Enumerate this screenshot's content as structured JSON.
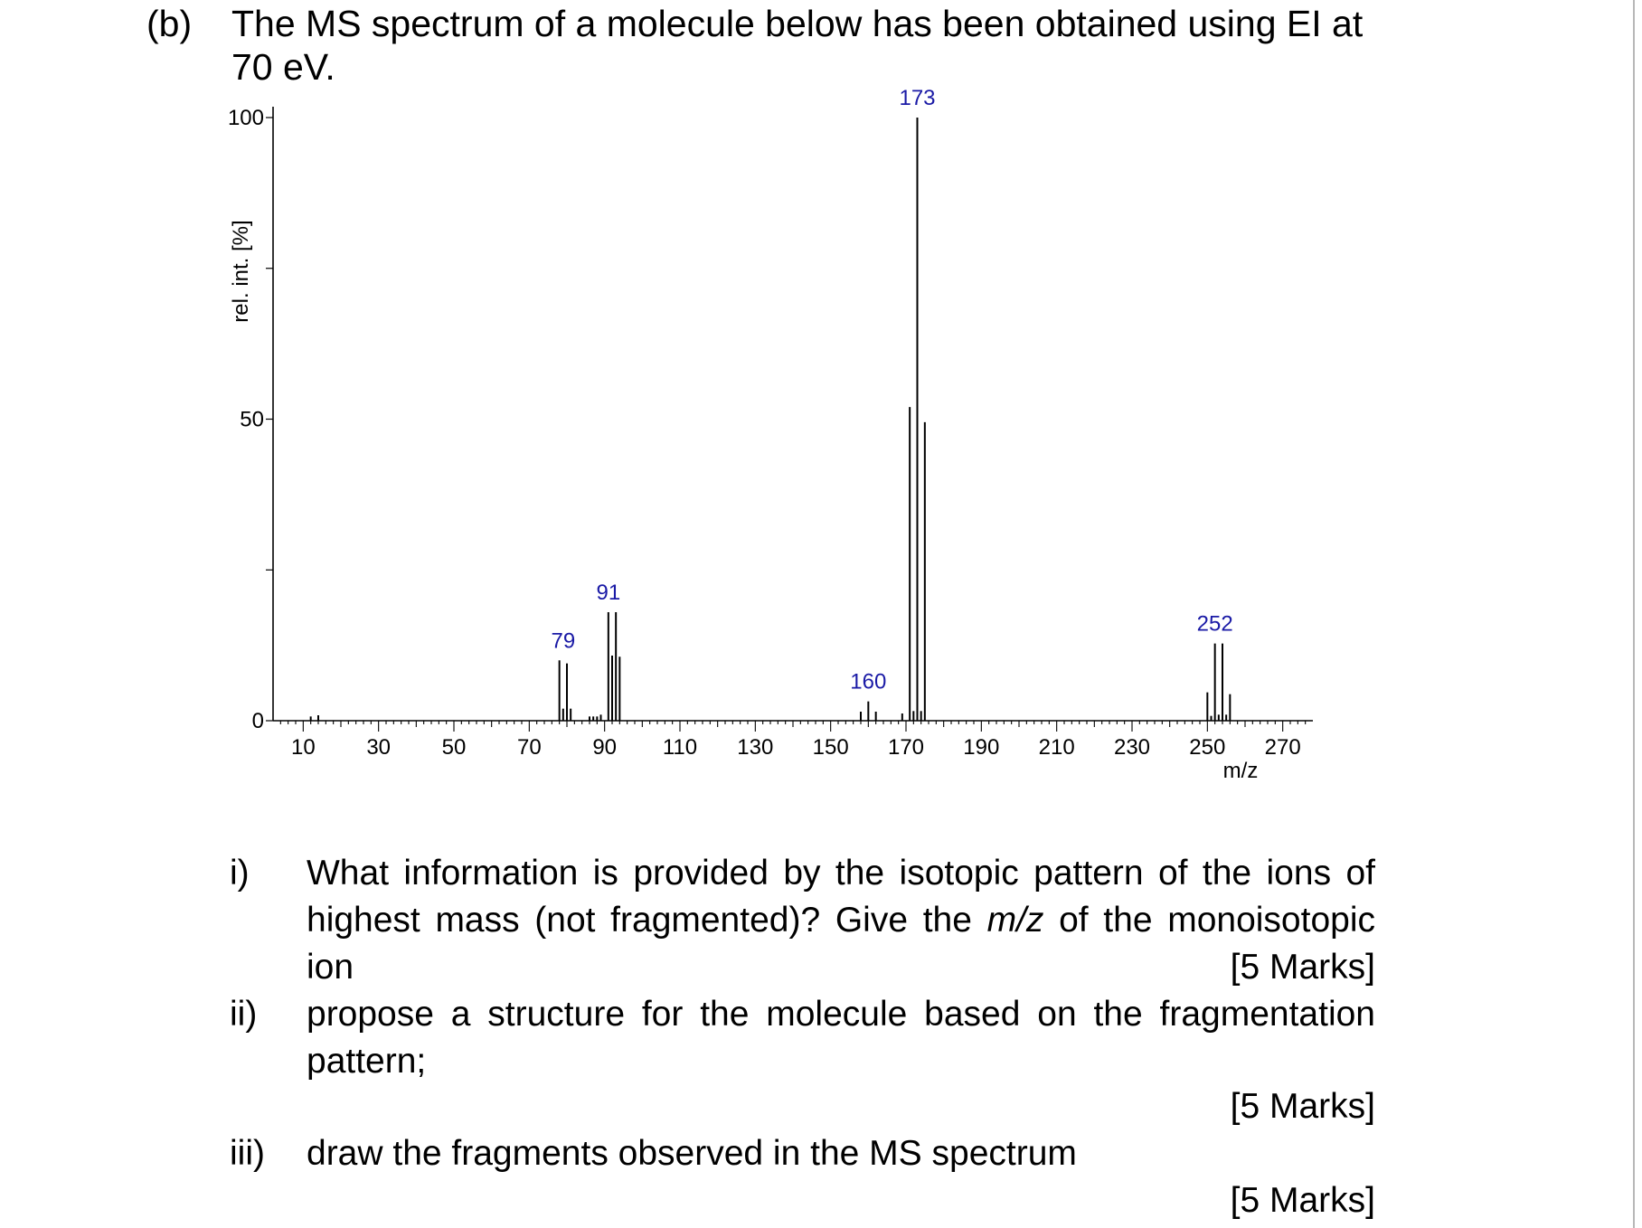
{
  "question": {
    "part_label": "(b)",
    "intro": "The MS spectrum of a molecule below has been obtained using EI at 70 eV."
  },
  "chart_data": {
    "type": "bar",
    "xlabel": "m/z",
    "ylabel": "rel. int. [%]",
    "xlim": [
      2,
      278
    ],
    "ylim": [
      0,
      100
    ],
    "x_ticks": [
      10,
      30,
      50,
      70,
      90,
      110,
      130,
      150,
      170,
      190,
      210,
      230,
      250,
      270
    ],
    "y_ticks": [
      0,
      50,
      100
    ],
    "grid": false,
    "peaks": [
      {
        "mz": 12,
        "intensity": 0.7
      },
      {
        "mz": 14,
        "intensity": 0.9
      },
      {
        "mz": 78,
        "intensity": 10
      },
      {
        "mz": 79,
        "intensity": 2
      },
      {
        "mz": 80,
        "intensity": 9.5
      },
      {
        "mz": 81,
        "intensity": 2
      },
      {
        "mz": 86,
        "intensity": 0.7
      },
      {
        "mz": 87,
        "intensity": 0.7
      },
      {
        "mz": 88,
        "intensity": 0.7
      },
      {
        "mz": 89,
        "intensity": 1
      },
      {
        "mz": 91,
        "intensity": 18
      },
      {
        "mz": 92,
        "intensity": 10.8
      },
      {
        "mz": 93,
        "intensity": 18
      },
      {
        "mz": 94,
        "intensity": 10.6
      },
      {
        "mz": 158,
        "intensity": 1.5
      },
      {
        "mz": 160,
        "intensity": 3.2
      },
      {
        "mz": 162,
        "intensity": 1.5
      },
      {
        "mz": 169,
        "intensity": 1.2
      },
      {
        "mz": 171,
        "intensity": 52
      },
      {
        "mz": 172,
        "intensity": 1.6
      },
      {
        "mz": 173,
        "intensity": 100
      },
      {
        "mz": 174,
        "intensity": 1.6
      },
      {
        "mz": 175,
        "intensity": 49.5
      },
      {
        "mz": 250,
        "intensity": 4.7
      },
      {
        "mz": 251,
        "intensity": 0.8
      },
      {
        "mz": 252,
        "intensity": 12.8
      },
      {
        "mz": 253,
        "intensity": 1
      },
      {
        "mz": 254,
        "intensity": 12.8
      },
      {
        "mz": 255,
        "intensity": 1
      },
      {
        "mz": 256,
        "intensity": 4.4
      }
    ],
    "peak_labels": [
      {
        "mz": 79,
        "text": "79",
        "intensity": 10
      },
      {
        "mz": 91,
        "text": "91",
        "intensity": 18
      },
      {
        "mz": 160,
        "text": "160",
        "intensity": 3.2
      },
      {
        "mz": 173,
        "text": "173",
        "intensity": 100
      },
      {
        "mz": 252,
        "text": "252",
        "intensity": 12.8
      }
    ]
  },
  "subquestions": [
    {
      "num": "i)",
      "line1": "What information is provided by the isotopic pattern of the ions of",
      "line2_pre": "highest mass (not fragmented)? Give the ",
      "line2_em": "m/z",
      "line2_post": " of the monoisotopic ion",
      "marks": "[5 Marks]"
    },
    {
      "num": "ii)",
      "line1": "propose a structure for the molecule based on the fragmentation",
      "line2": "pattern;",
      "marks": "[5 Marks]"
    },
    {
      "num": "iii)",
      "line1": "draw the fragments observed in the MS spectrum",
      "marks": "[5 Marks]"
    }
  ]
}
